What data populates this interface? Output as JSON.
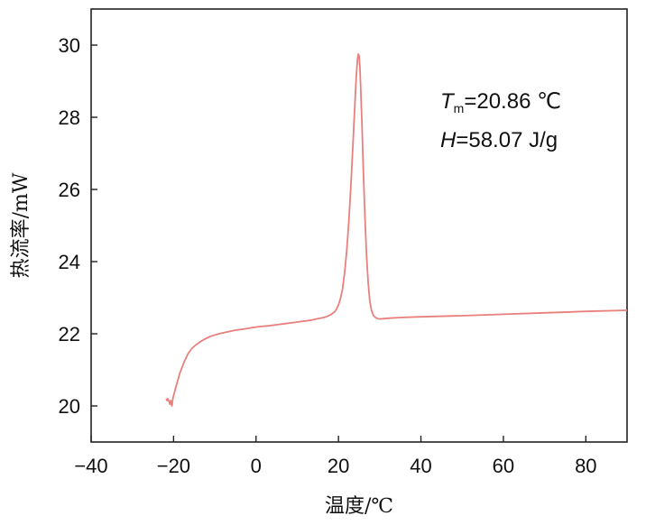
{
  "chart_data": {
    "type": "line",
    "xlabel": "温度/℃",
    "ylabel": "热流率/mW",
    "xlim": [
      -40,
      90
    ],
    "ylim": [
      19,
      31
    ],
    "xticks": [
      -40,
      -20,
      0,
      20,
      40,
      60,
      80
    ],
    "xtick_labels": [
      "−40",
      "−20",
      "0",
      "20",
      "40",
      "60",
      "80"
    ],
    "yticks": [
      20,
      22,
      24,
      26,
      28,
      30
    ],
    "ytick_labels": [
      "20",
      "22",
      "24",
      "26",
      "28",
      "30"
    ],
    "grid": false,
    "line_color": "#e8807e",
    "annotations": {
      "tm_symbol": "T",
      "tm_sub": "m",
      "tm_value": "=20.86 ℃",
      "h_symbol": "H",
      "h_value": "=58.07 J/g"
    },
    "series": [
      {
        "x": [
          -21.8,
          -21.6,
          -21.4,
          -21.2,
          -21.0,
          -20.9,
          -20.7,
          -20.6,
          -20.5,
          -20.4,
          -20.2,
          -19.5,
          -18.5,
          -17.5,
          -16.5,
          -15.5,
          -14.5,
          -13.5,
          -12.5,
          -11,
          -9,
          -7,
          -5,
          -3,
          -1,
          1,
          3,
          5,
          7,
          9,
          11,
          13,
          15,
          16,
          17,
          18,
          19,
          19.5,
          20,
          20.5,
          21,
          21.5,
          22,
          22.5,
          23,
          23.5,
          24,
          24.3,
          24.6,
          24.8,
          25.0,
          25.2,
          25.4,
          25.7,
          26.0,
          26.4,
          26.8,
          27.2,
          27.6,
          28.0,
          28.5,
          29,
          29.5,
          30,
          31,
          32,
          35,
          40,
          50,
          60,
          70,
          80,
          90
        ],
        "y": [
          20.2,
          20.15,
          20.2,
          20.15,
          20.1,
          20.05,
          20.15,
          20.05,
          20.1,
          20.0,
          20.2,
          20.5,
          20.9,
          21.2,
          21.45,
          21.6,
          21.7,
          21.78,
          21.85,
          21.93,
          22.0,
          22.05,
          22.1,
          22.13,
          22.17,
          22.2,
          22.22,
          22.25,
          22.28,
          22.31,
          22.34,
          22.37,
          22.42,
          22.44,
          22.47,
          22.52,
          22.6,
          22.68,
          22.8,
          22.98,
          23.25,
          23.7,
          24.3,
          25.1,
          26.1,
          27.2,
          28.4,
          29.1,
          29.6,
          29.75,
          29.7,
          29.4,
          28.8,
          27.8,
          26.6,
          25.3,
          24.2,
          23.4,
          22.9,
          22.65,
          22.5,
          22.45,
          22.42,
          22.41,
          22.42,
          22.43,
          22.45,
          22.47,
          22.5,
          22.54,
          22.58,
          22.62,
          22.65
        ]
      }
    ]
  }
}
